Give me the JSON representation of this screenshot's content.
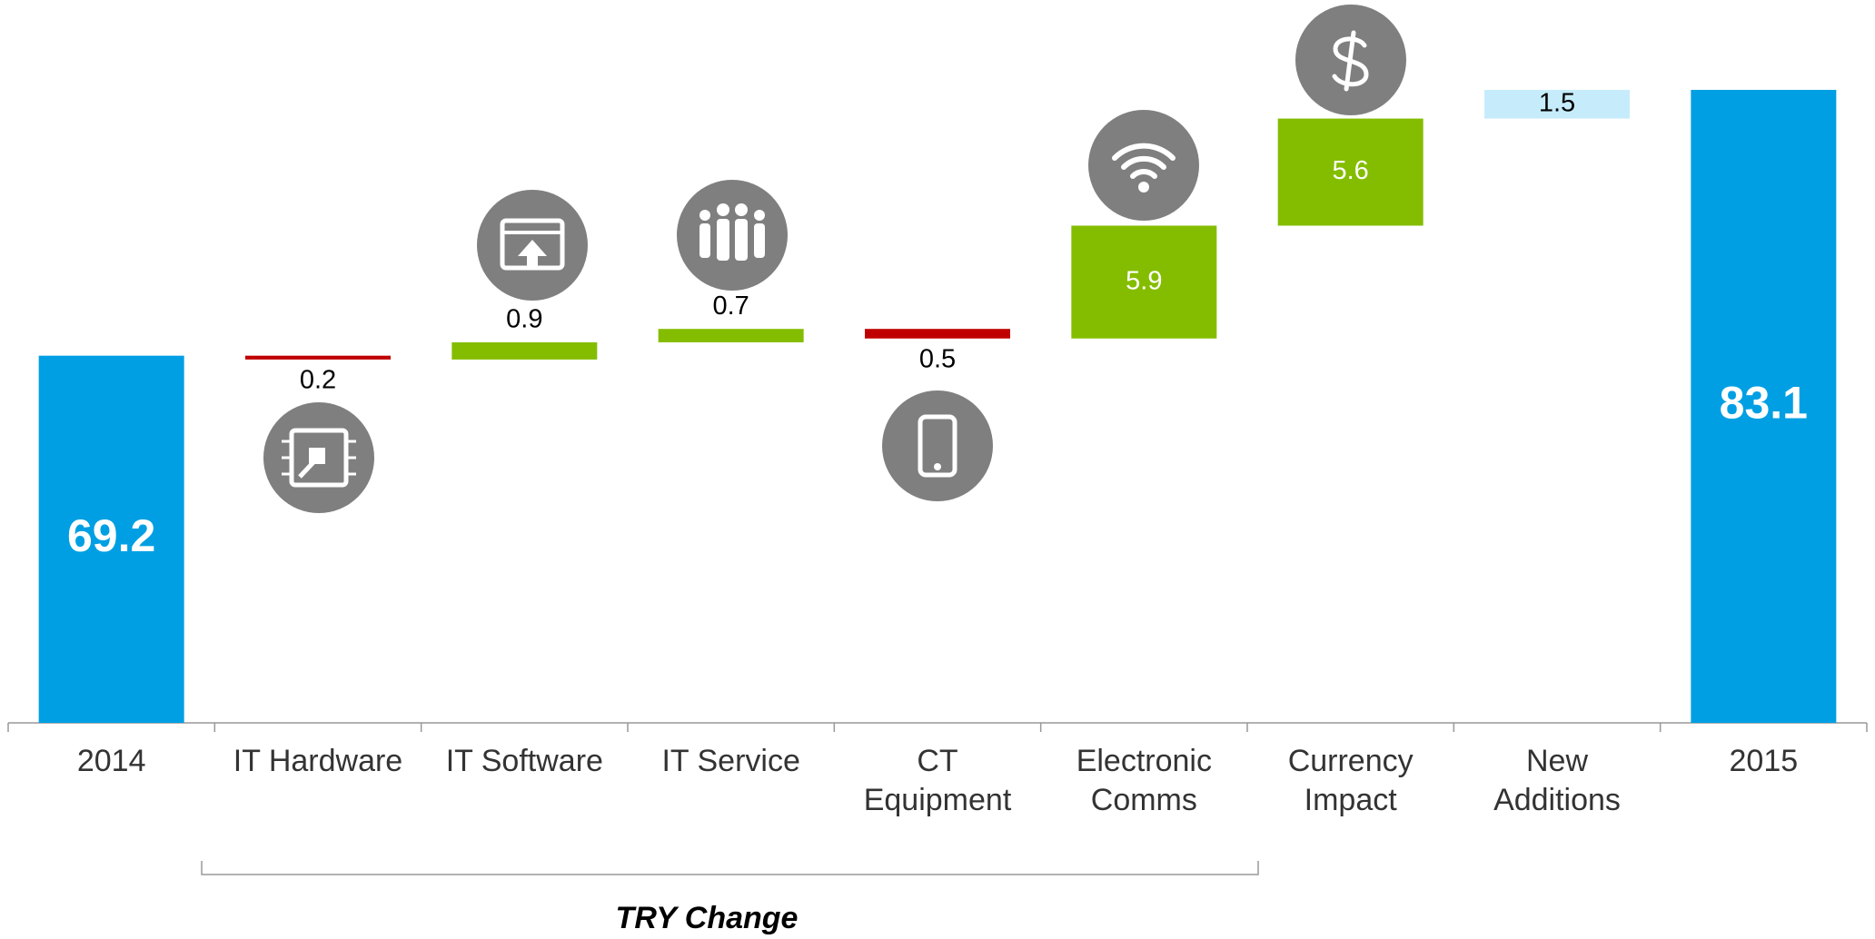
{
  "chart_data": {
    "type": "waterfall",
    "categories": [
      [
        "2014"
      ],
      [
        "IT Hardware"
      ],
      [
        "IT Software"
      ],
      [
        "IT Service"
      ],
      [
        "CT",
        "Equipment"
      ],
      [
        "Electronic",
        "Comms"
      ],
      [
        "Currency",
        "Impact"
      ],
      [
        "New",
        "Additions"
      ],
      [
        "2015"
      ]
    ],
    "measures": [
      "absolute",
      "relative",
      "relative",
      "relative",
      "relative",
      "relative",
      "relative",
      "relative",
      "total"
    ],
    "values": [
      69.2,
      -0.2,
      0.9,
      0.7,
      -0.5,
      5.9,
      5.6,
      1.5,
      83.1
    ],
    "value_labels": [
      "69.2",
      "0.2",
      "0.9",
      "0.7",
      "0.5",
      "5.9",
      "5.6",
      "1.5",
      "83.1"
    ],
    "colors": [
      "#009fe3",
      "#c00000",
      "#84bd00",
      "#84bd00",
      "#c00000",
      "#84bd00",
      "#84bd00",
      "#c6ecfb",
      "#009fe3"
    ],
    "ylim": [
      50,
      87.8
    ],
    "group_label": "TRY Change"
  }
}
